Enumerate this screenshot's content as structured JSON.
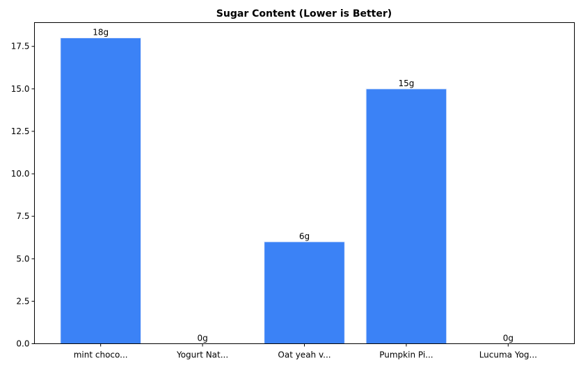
{
  "chart_data": {
    "type": "bar",
    "title": "Sugar Content (Lower is Better)",
    "xlabel": "",
    "ylabel": "",
    "categories": [
      "mint choco...",
      "Yogurt Nat...",
      "Oat yeah v...",
      "Pumpkin Pi...",
      "Lucuma Yog..."
    ],
    "values": [
      18,
      0,
      6,
      15,
      0
    ],
    "data_labels": [
      "18g",
      "0g",
      "6g",
      "15g",
      "0g"
    ],
    "yticks": [
      0,
      2.5,
      5,
      7.5,
      10,
      12.5,
      15,
      17.5
    ],
    "ytick_labels": [
      "0.0",
      "2.5",
      "5.0",
      "7.5",
      "10.0",
      "12.5",
      "15.0",
      "17.5"
    ],
    "ylim": [
      0,
      18.9
    ],
    "grid": false,
    "bar_color": "#3b82f6"
  }
}
